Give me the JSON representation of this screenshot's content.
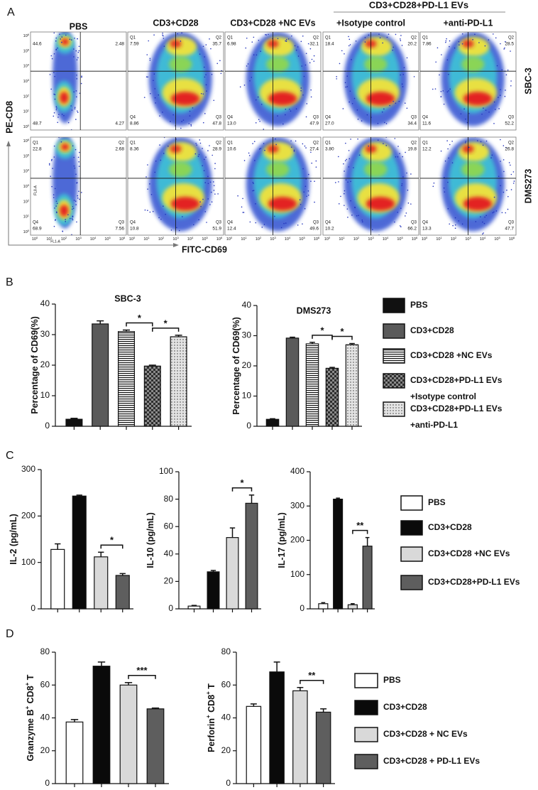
{
  "panel_labels": [
    "A",
    "B",
    "C",
    "D"
  ],
  "flow": {
    "group_header": "CD3+CD28+PD-L1 EVs",
    "columns": [
      "PBS",
      "CD3+CD28",
      "CD3+CD28 +NC EVs",
      "+Isotype control",
      "+anti-PD-L1"
    ],
    "y_label": "PE-CD8",
    "x_label": "FITC-CD69",
    "y_channel": "FL8-A",
    "x_channel": "FL1-A",
    "tick_base": "10",
    "tick_exponents": [
      "0",
      "1",
      "2",
      "3",
      "4",
      "5",
      "6"
    ],
    "rows": [
      {
        "name": "SBC-3",
        "plots": [
          {
            "quadrants": [
              {
                "value": "44.6"
              },
              {
                "value": "2.48"
              },
              {
                "value": "48.7"
              },
              {
                "value": "4.27"
              }
            ]
          },
          {
            "quadrants": [
              {
                "name": "Q1",
                "value": "7.59"
              },
              {
                "name": "Q2",
                "value": "35.7"
              },
              {
                "name": "Q4",
                "value": "8.86"
              },
              {
                "name": "Q3",
                "value": "47.8"
              }
            ]
          },
          {
            "quadrants": [
              {
                "name": "Q1",
                "value": "6.98"
              },
              {
                "name": "Q2",
                "value": "32.1"
              },
              {
                "name": "Q4",
                "value": "13.0"
              },
              {
                "name": "Q3",
                "value": "47.9"
              }
            ]
          },
          {
            "quadrants": [
              {
                "name": "Q1",
                "value": "18.4"
              },
              {
                "name": "Q2",
                "value": "20.2"
              },
              {
                "name": "Q4",
                "value": "27.0"
              },
              {
                "name": "Q3",
                "value": "34.4"
              }
            ]
          },
          {
            "quadrants": [
              {
                "name": "Q1",
                "value": "7.86"
              },
              {
                "name": "Q2",
                "value": "28.5"
              },
              {
                "name": "Q4",
                "value": "11.6"
              },
              {
                "name": "Q3",
                "value": "52.2"
              }
            ]
          }
        ]
      },
      {
        "name": "DMS273",
        "plots": [
          {
            "quadrants": [
              {
                "name": "Q1",
                "value": "22.8"
              },
              {
                "name": "Q2",
                "value": "2.68"
              },
              {
                "name": "Q4",
                "value": "68.9"
              },
              {
                "name": "Q3",
                "value": "7.56"
              }
            ]
          },
          {
            "quadrants": [
              {
                "name": "Q1",
                "value": "8.36"
              },
              {
                "name": "Q2",
                "value": "28.9"
              },
              {
                "name": "Q4",
                "value": "10.8"
              },
              {
                "name": "Q3",
                "value": "51.9"
              }
            ]
          },
          {
            "quadrants": [
              {
                "name": "Q1",
                "value": "10.6"
              },
              {
                "name": "Q2",
                "value": "27.4"
              },
              {
                "name": "Q4",
                "value": "12.4"
              },
              {
                "name": "Q3",
                "value": "49.6"
              }
            ]
          },
          {
            "quadrants": [
              {
                "name": "Q1",
                "value": "3.80"
              },
              {
                "name": "Q2",
                "value": "19.8"
              },
              {
                "name": "Q4",
                "value": "10.2"
              },
              {
                "name": "Q3",
                "value": "66.2"
              }
            ]
          },
          {
            "quadrants": [
              {
                "name": "Q1",
                "value": "12.2"
              },
              {
                "name": "Q2",
                "value": "26.8"
              },
              {
                "name": "Q4",
                "value": "13.3"
              },
              {
                "name": "Q3",
                "value": "47.7"
              }
            ]
          }
        ]
      }
    ]
  },
  "legends": {
    "B": [
      {
        "name": [
          "PBS"
        ],
        "color": "#111111"
      },
      {
        "name": [
          "CD3+CD28"
        ],
        "color": "#5a5a5a"
      },
      {
        "name": [
          "CD3+CD28 +NC EVs"
        ],
        "color": "#ffffff",
        "pattern": "hstripe"
      },
      {
        "name": [
          "CD3+CD28+PD-L1 EVs",
          "+Isotype control"
        ],
        "color": "#2e2e2e",
        "pattern": "crosshatch"
      },
      {
        "name": [
          "CD3+CD28+PD-L1 EVs",
          "+anti-PD-L1"
        ],
        "color": "#e4e4e4",
        "pattern": "dots"
      }
    ],
    "C": [
      {
        "name": [
          "PBS"
        ],
        "color": "#ffffff"
      },
      {
        "name": [
          "CD3+CD28"
        ],
        "color": "#0a0a0a"
      },
      {
        "name": [
          "CD3+CD28 +NC EVs"
        ],
        "color": "#d9d9d9"
      },
      {
        "name": [
          "CD3+CD28+PD-L1 EVs"
        ],
        "color": "#5e5e5e"
      }
    ],
    "D": [
      {
        "name": [
          "PBS"
        ],
        "color": "#ffffff"
      },
      {
        "name": [
          "CD3+CD28"
        ],
        "color": "#0a0a0a"
      },
      {
        "name": [
          "CD3+CD28 + NC EVs"
        ],
        "color": "#d9d9d9"
      },
      {
        "name": [
          "CD3+CD28 + PD-L1 EVs"
        ],
        "color": "#5e5e5e"
      }
    ]
  },
  "chart_data": [
    {
      "type": "bar",
      "title": "SBC-3",
      "y_label": [
        {
          "text": "Percentage of CD69(%)"
        }
      ],
      "values": [
        2.3,
        33.5,
        31,
        19.7,
        29.3
      ],
      "errors": [
        0.3,
        1,
        0.5,
        0.3,
        0.5
      ],
      "colors": [
        "#111111",
        "#5a5a5a",
        "#ffffff",
        "#2e2e2e",
        "#e4e4e4"
      ],
      "patterns": [
        null,
        null,
        "hstripe",
        "crosshatch",
        "dots"
      ],
      "ylim": [
        0,
        40
      ],
      "yticks": [
        0,
        10,
        20,
        30,
        40
      ],
      "significance": [
        {
          "from": 2,
          "to": 3,
          "label": "*"
        },
        {
          "from": 3,
          "to": 4,
          "label": "*"
        }
      ]
    },
    {
      "type": "bar",
      "title": "DMS273",
      "y_label": [
        {
          "text": "Percentage of CD69(%)"
        }
      ],
      "values": [
        2.3,
        29.2,
        27.3,
        19.2,
        27
      ],
      "errors": [
        0.2,
        0.3,
        0.5,
        0.3,
        0.4
      ],
      "colors": [
        "#111111",
        "#5a5a5a",
        "#ffffff",
        "#2e2e2e",
        "#e4e4e4"
      ],
      "patterns": [
        null,
        null,
        "hstripe",
        "crosshatch",
        "dots"
      ],
      "ylim": [
        0,
        40
      ],
      "yticks": [
        0,
        10,
        20,
        30,
        40
      ],
      "significance": [
        {
          "from": 2,
          "to": 3,
          "label": "*"
        },
        {
          "from": 3,
          "to": 4,
          "label": "*"
        }
      ]
    },
    {
      "type": "bar",
      "y_label": [
        {
          "text": "IL-2 (pg/mL)"
        }
      ],
      "values": [
        128,
        243,
        112,
        72
      ],
      "errors": [
        12,
        2,
        10,
        4
      ],
      "colors": [
        "#ffffff",
        "#0a0a0a",
        "#d9d9d9",
        "#5e5e5e"
      ],
      "ylim": [
        0,
        300
      ],
      "yticks": [
        0,
        100,
        200,
        300
      ],
      "significance": [
        {
          "from": 2,
          "to": 3,
          "label": "*"
        }
      ]
    },
    {
      "type": "bar",
      "y_label": [
        {
          "text": "IL-10 (pg/mL)"
        }
      ],
      "values": [
        2,
        27,
        52,
        77
      ],
      "errors": [
        0.5,
        1,
        7,
        6
      ],
      "colors": [
        "#ffffff",
        "#0a0a0a",
        "#d9d9d9",
        "#5e5e5e"
      ],
      "ylim": [
        0,
        100
      ],
      "yticks": [
        0,
        20,
        40,
        60,
        80,
        100
      ],
      "significance": [
        {
          "from": 2,
          "to": 3,
          "label": "*"
        }
      ]
    },
    {
      "type": "bar",
      "y_label": [
        {
          "text": "IL-17 (pg/mL)"
        }
      ],
      "values": [
        15,
        320,
        12,
        183
      ],
      "errors": [
        3,
        3,
        3,
        25
      ],
      "colors": [
        "#ffffff",
        "#0a0a0a",
        "#d9d9d9",
        "#5e5e5e"
      ],
      "ylim": [
        0,
        400
      ],
      "yticks": [
        0,
        100,
        200,
        300,
        400
      ],
      "significance": [
        {
          "from": 2,
          "to": 3,
          "label": "**"
        }
      ]
    },
    {
      "type": "bar",
      "y_label": [
        {
          "text": "Granzyme B"
        },
        {
          "text": "+",
          "sup": true
        },
        {
          "text": " CD8"
        },
        {
          "text": "+",
          "sup": true
        },
        {
          "text": " T"
        }
      ],
      "values": [
        37.5,
        71.5,
        60,
        45.5
      ],
      "errors": [
        1.5,
        2.5,
        1.5,
        0.5
      ],
      "colors": [
        "#ffffff",
        "#0a0a0a",
        "#d9d9d9",
        "#5e5e5e"
      ],
      "ylim": [
        0,
        80
      ],
      "yticks": [
        0,
        20,
        40,
        60,
        80
      ],
      "significance": [
        {
          "from": 2,
          "to": 3,
          "label": "***"
        }
      ]
    },
    {
      "type": "bar",
      "y_label": [
        {
          "text": "Perforin"
        },
        {
          "text": "+",
          "sup": true
        },
        {
          "text": " CD8"
        },
        {
          "text": "+",
          "sup": true
        },
        {
          "text": " T"
        }
      ],
      "values": [
        47,
        68,
        56.5,
        43.5
      ],
      "errors": [
        1.5,
        6,
        2,
        2
      ],
      "colors": [
        "#ffffff",
        "#0a0a0a",
        "#d9d9d9",
        "#5e5e5e"
      ],
      "ylim": [
        0,
        80
      ],
      "yticks": [
        0,
        20,
        40,
        60,
        80
      ],
      "significance": [
        {
          "from": 2,
          "to": 3,
          "label": "**"
        }
      ]
    }
  ]
}
